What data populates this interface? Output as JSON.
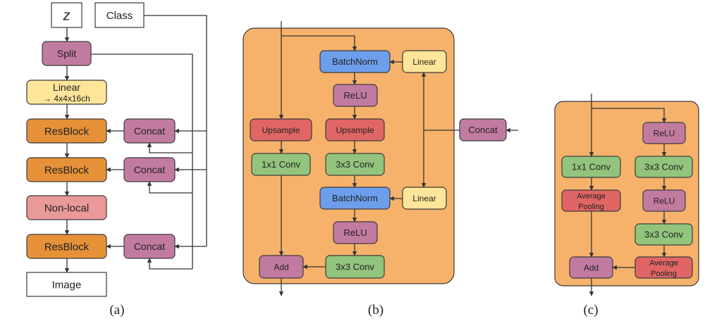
{
  "colors": {
    "panel": "#f6b26b",
    "resblock": "#e69138",
    "purple": "#c27ba0",
    "yellow": "#ffe599",
    "blue": "#6d9eeb",
    "red": "#e06666",
    "green": "#93c47d",
    "pink": "#ea9999",
    "white": "#ffffff",
    "border": "#3a3a3a"
  },
  "panel_a": {
    "caption": "(a)",
    "z": "z",
    "class": "Class",
    "split": "Split",
    "linear": "Linear",
    "linear_sub": "→ 4x4x16ch",
    "resblock_1": "ResBlock",
    "resblock_2": "ResBlock",
    "nonlocal": "Non-local",
    "resblock_3": "ResBlock",
    "image": "Image",
    "concat_1": "Concat",
    "concat_2": "Concat",
    "concat_3": "Concat"
  },
  "panel_b": {
    "caption": "(b)",
    "batchnorm_1": "BatchNorm",
    "linear_1": "Linear",
    "relu_1": "ReLU",
    "upsample_skip": "Upsample",
    "upsample_main": "Upsample",
    "concat": "Concat",
    "conv1x1": "1x1 Conv",
    "conv3x3_1": "3x3 Conv",
    "batchnorm_2": "BatchNorm",
    "linear_2": "Linear",
    "relu_2": "ReLU",
    "add": "Add",
    "conv3x3_2": "3x3 Conv"
  },
  "panel_c": {
    "caption": "(c)",
    "relu_1": "ReLU",
    "conv1x1": "1x1 Conv",
    "conv3x3_1": "3x3 Conv",
    "avgpool_skip_1": "Average",
    "avgpool_skip_2": "Pooling",
    "relu_2": "ReLU",
    "conv3x3_2": "3x3 Conv",
    "add": "Add",
    "avgpool_main_1": "Average",
    "avgpool_main_2": "Pooling"
  }
}
